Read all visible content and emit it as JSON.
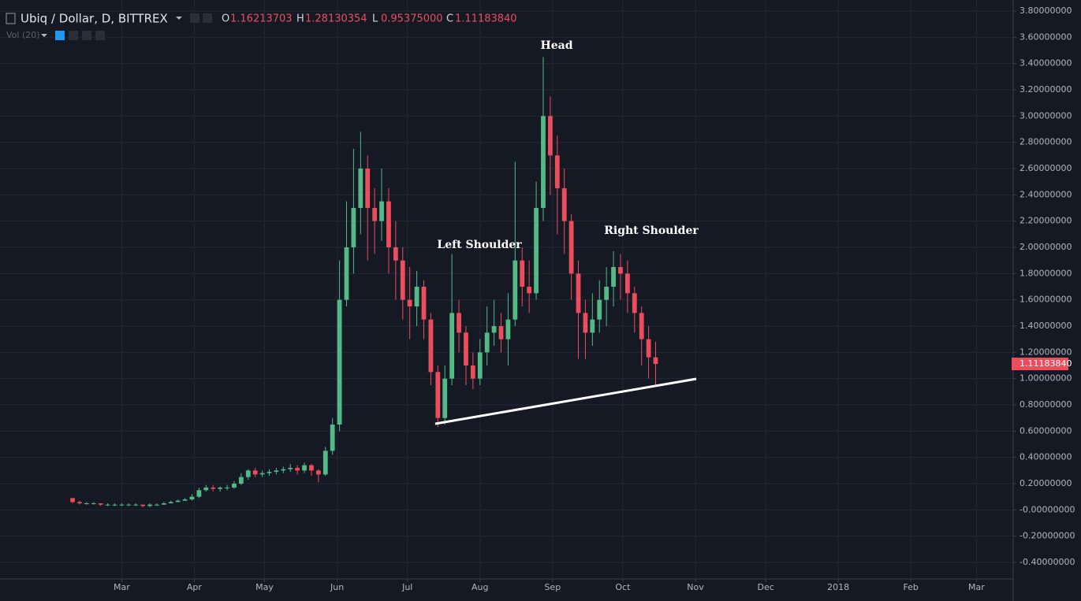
{
  "header": {
    "title": "Ubiq / Dollar, D, BITTREX",
    "indicator": "Vol (20)",
    "ohlc": [
      {
        "label": "O",
        "value": "1.16213703"
      },
      {
        "label": "H",
        "value": "1.28130354"
      },
      {
        "label": "L",
        "value": "0.95375000"
      },
      {
        "label": "C",
        "value": "1.11183840"
      }
    ]
  },
  "chart_data": {
    "type": "candlestick",
    "up_color": "#53b987",
    "down_color": "#eb4d5c",
    "grid": true,
    "open": [
      0.09,
      0.06,
      0.05,
      0.05,
      0.05,
      0.04,
      0.04,
      0.04,
      0.04,
      0.04,
      0.04,
      0.03,
      0.04,
      0.04,
      0.05,
      0.06,
      0.07,
      0.08,
      0.1,
      0.15,
      0.17,
      0.16,
      0.17,
      0.17,
      0.2,
      0.25,
      0.3,
      0.27,
      0.28,
      0.29,
      0.3,
      0.31,
      0.32,
      0.3,
      0.34,
      0.3,
      0.27,
      0.45,
      0.65,
      1.6,
      2.0,
      2.3,
      2.6,
      2.3,
      2.2,
      2.35,
      2.0,
      1.9,
      1.6,
      1.55,
      1.7,
      1.45,
      1.05,
      0.7,
      1.0,
      1.5,
      1.35,
      1.1,
      1.0,
      1.2,
      1.35,
      1.4,
      1.3,
      1.45,
      1.9,
      1.7,
      1.65,
      2.3,
      3.0,
      2.7,
      2.45,
      2.2,
      1.8,
      1.5,
      1.35,
      1.45,
      1.6,
      1.7,
      1.85,
      1.8,
      1.65,
      1.5,
      1.3,
      1.16213703
    ],
    "high": [
      0.09,
      0.07,
      0.06,
      0.06,
      0.05,
      0.05,
      0.05,
      0.05,
      0.05,
      0.05,
      0.04,
      0.05,
      0.05,
      0.06,
      0.07,
      0.08,
      0.09,
      0.12,
      0.17,
      0.19,
      0.19,
      0.18,
      0.19,
      0.22,
      0.28,
      0.31,
      0.32,
      0.3,
      0.31,
      0.32,
      0.33,
      0.35,
      0.34,
      0.36,
      0.35,
      0.31,
      0.48,
      0.7,
      1.9,
      2.35,
      2.75,
      2.88,
      2.7,
      2.45,
      2.6,
      2.45,
      2.2,
      2.0,
      1.85,
      1.82,
      1.75,
      1.5,
      1.1,
      1.1,
      1.95,
      1.6,
      1.4,
      1.2,
      1.3,
      1.55,
      1.6,
      1.5,
      1.65,
      2.65,
      2.0,
      1.9,
      2.5,
      3.45,
      3.15,
      2.85,
      2.6,
      2.25,
      1.9,
      1.6,
      1.65,
      1.75,
      1.85,
      1.97,
      1.95,
      1.9,
      1.7,
      1.55,
      1.4,
      1.28130354
    ],
    "low": [
      0.05,
      0.04,
      0.04,
      0.04,
      0.03,
      0.03,
      0.03,
      0.03,
      0.03,
      0.03,
      0.02,
      0.02,
      0.03,
      0.04,
      0.05,
      0.06,
      0.07,
      0.07,
      0.09,
      0.14,
      0.14,
      0.14,
      0.15,
      0.16,
      0.19,
      0.23,
      0.25,
      0.25,
      0.26,
      0.27,
      0.28,
      0.29,
      0.27,
      0.28,
      0.26,
      0.21,
      0.26,
      0.42,
      0.6,
      1.55,
      1.8,
      2.1,
      1.9,
      1.95,
      2.05,
      1.8,
      1.6,
      1.45,
      1.3,
      1.4,
      1.3,
      0.95,
      0.63,
      0.65,
      0.95,
      1.2,
      0.95,
      0.92,
      0.95,
      1.1,
      1.25,
      1.2,
      1.1,
      1.4,
      1.55,
      1.5,
      1.6,
      2.2,
      2.4,
      2.1,
      1.95,
      1.6,
      1.15,
      1.15,
      1.25,
      1.35,
      1.4,
      1.55,
      1.6,
      1.5,
      1.35,
      1.1,
      1.0,
      0.95375
    ],
    "close": [
      0.06,
      0.05,
      0.05,
      0.05,
      0.04,
      0.04,
      0.04,
      0.04,
      0.04,
      0.04,
      0.03,
      0.04,
      0.04,
      0.05,
      0.06,
      0.07,
      0.08,
      0.1,
      0.15,
      0.17,
      0.16,
      0.17,
      0.17,
      0.2,
      0.25,
      0.3,
      0.27,
      0.28,
      0.29,
      0.3,
      0.31,
      0.32,
      0.3,
      0.34,
      0.3,
      0.27,
      0.45,
      0.65,
      1.6,
      2.0,
      2.3,
      2.6,
      2.3,
      2.2,
      2.35,
      2.0,
      1.9,
      1.6,
      1.55,
      1.7,
      1.45,
      1.05,
      0.7,
      1.0,
      1.5,
      1.35,
      1.1,
      1.0,
      1.2,
      1.35,
      1.4,
      1.3,
      1.45,
      1.9,
      1.7,
      1.65,
      2.3,
      3.0,
      2.7,
      2.45,
      2.2,
      1.8,
      1.5,
      1.35,
      1.45,
      1.6,
      1.7,
      1.85,
      1.8,
      1.65,
      1.5,
      1.3,
      1.16213703,
      1.1118384
    ],
    "last_price": {
      "value": 1.1118384,
      "label": "1.11183840"
    },
    "xlim": [
      -10.33,
      133.9
    ],
    "xticks": [
      {
        "value": 7,
        "label": "Mar"
      },
      {
        "value": 17.33,
        "label": "Apr"
      },
      {
        "value": 27.33,
        "label": "May"
      },
      {
        "value": 37.67,
        "label": "Jun"
      },
      {
        "value": 47.67,
        "label": "Jul"
      },
      {
        "value": 58,
        "label": "Aug"
      },
      {
        "value": 68.33,
        "label": "Sep"
      },
      {
        "value": 78.33,
        "label": "Oct"
      },
      {
        "value": 88.67,
        "label": "Nov"
      },
      {
        "value": 98.67,
        "label": "Dec"
      },
      {
        "value": 109,
        "label": "2018"
      },
      {
        "value": 119.33,
        "label": "Feb"
      },
      {
        "value": 128.67,
        "label": "Mar"
      }
    ],
    "ylim": [
      -0.526,
      3.854
    ],
    "yticks": [
      {
        "value": 3.8,
        "label": "3.80000000"
      },
      {
        "value": 3.6,
        "label": "3.60000000"
      },
      {
        "value": 3.4,
        "label": "3.40000000"
      },
      {
        "value": 3.2,
        "label": "3.20000000"
      },
      {
        "value": 3.0,
        "label": "3.00000000"
      },
      {
        "value": 2.8,
        "label": "2.80000000"
      },
      {
        "value": 2.6,
        "label": "2.60000000"
      },
      {
        "value": 2.4,
        "label": "2.40000000"
      },
      {
        "value": 2.2,
        "label": "2.20000000"
      },
      {
        "value": 2.0,
        "label": "2.00000000"
      },
      {
        "value": 1.8,
        "label": "1.80000000"
      },
      {
        "value": 1.6,
        "label": "1.60000000"
      },
      {
        "value": 1.4,
        "label": "1.40000000"
      },
      {
        "value": 1.2,
        "label": "1.20000000"
      },
      {
        "value": 1.0,
        "label": "1.00000000"
      },
      {
        "value": 0.8,
        "label": "0.80000000"
      },
      {
        "value": 0.6,
        "label": "0.60000000"
      },
      {
        "value": 0.4,
        "label": "0.40000000"
      },
      {
        "value": 0.2,
        "label": "0.20000000"
      },
      {
        "value": 0,
        "label": "-0.00000000"
      },
      {
        "value": -0.2,
        "label": "-0.20000000"
      },
      {
        "value": -0.4,
        "label": "-0.40000000"
      }
    ],
    "annotations": [
      {
        "text": "Head"
      },
      {
        "text": "Left Shoulder"
      },
      {
        "text": "Right Shoulder"
      }
    ]
  }
}
